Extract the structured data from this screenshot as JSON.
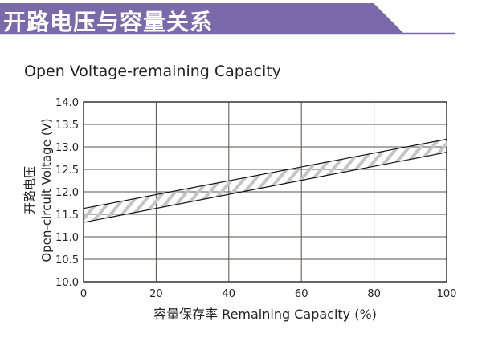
{
  "banner": {
    "title": "开路电压与容量关系",
    "color": "#7a6aaa"
  },
  "chart_data": {
    "type": "area",
    "title": "Open Voltage-remaining Capacity",
    "xlabel": "容量保存率 Remaining Capacity (%)",
    "ylabel_cn": "开路电压",
    "ylabel": "Open-circuit Voltage (V)",
    "xlim": [
      0,
      100
    ],
    "ylim": [
      10.0,
      14.0
    ],
    "xticks": [
      "0",
      "20",
      "40",
      "60",
      "80",
      "100"
    ],
    "yticks": [
      "10.0",
      "10.5",
      "11.0",
      "11.5",
      "12.0",
      "12.5",
      "13.0",
      "13.5",
      "14.0"
    ],
    "grid": true,
    "series": [
      {
        "x": [
          0,
          100
        ],
        "upper": [
          11.63,
          13.17
        ],
        "lower": [
          11.32,
          12.88
        ]
      }
    ],
    "fill": "hatched"
  }
}
